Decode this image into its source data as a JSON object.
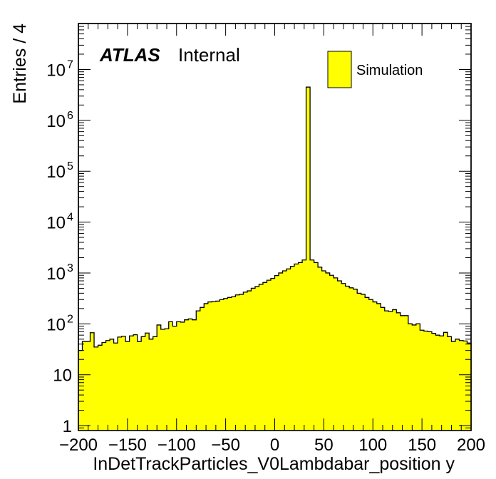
{
  "chart_data": {
    "type": "bar",
    "title": "",
    "xlabel": "InDetTrackParticles_V0Lambdabar_position y",
    "ylabel": "Entries / 4",
    "log_y": true,
    "xlim": [
      -200,
      200
    ],
    "ylim": [
      0.8,
      80000000
    ],
    "bin_width": 4,
    "x_ticks": [
      "−200",
      "−150",
      "−100",
      "−50",
      "0",
      "50",
      "100",
      "150",
      "200"
    ],
    "y_ticks": [
      {
        "value": 1,
        "base": "1",
        "exp": ""
      },
      {
        "value": 10,
        "base": "10",
        "exp": ""
      },
      {
        "value": 100,
        "base": "10",
        "exp": "2"
      },
      {
        "value": 1000,
        "base": "10",
        "exp": "3"
      },
      {
        "value": 10000,
        "base": "10",
        "exp": "4"
      },
      {
        "value": 100000,
        "base": "10",
        "exp": "5"
      },
      {
        "value": 1000000,
        "base": "10",
        "exp": "6"
      },
      {
        "value": 10000000,
        "base": "10",
        "exp": "7"
      }
    ],
    "experiment_label": "ATLAS",
    "status_label": "Internal",
    "legend": {
      "placement": "top-right",
      "entries": [
        {
          "name": "Simulation",
          "color": "#ffff00"
        }
      ]
    },
    "fill_color": "#ffff00",
    "line_color": "#000000",
    "values": [
      30,
      45,
      45,
      67,
      35,
      38,
      43,
      47,
      50,
      42,
      55,
      57,
      45,
      58,
      61,
      45,
      56,
      66,
      50,
      56,
      95,
      78,
      80,
      110,
      90,
      110,
      108,
      120,
      125,
      120,
      180,
      210,
      250,
      270,
      275,
      280,
      300,
      315,
      330,
      340,
      370,
      380,
      420,
      445,
      500,
      540,
      600,
      650,
      720,
      780,
      890,
      1000,
      1100,
      1200,
      1350,
      1500,
      1600,
      1800,
      4500000,
      1800,
      1600,
      1300,
      1100,
      1000,
      900,
      800,
      700,
      620,
      550,
      510,
      480,
      400,
      380,
      330,
      300,
      270,
      250,
      210,
      180,
      175,
      190,
      165,
      145,
      145,
      100,
      95,
      100,
      75,
      72,
      70,
      65,
      60,
      58,
      68,
      56,
      45,
      50,
      47,
      46,
      42
    ]
  }
}
